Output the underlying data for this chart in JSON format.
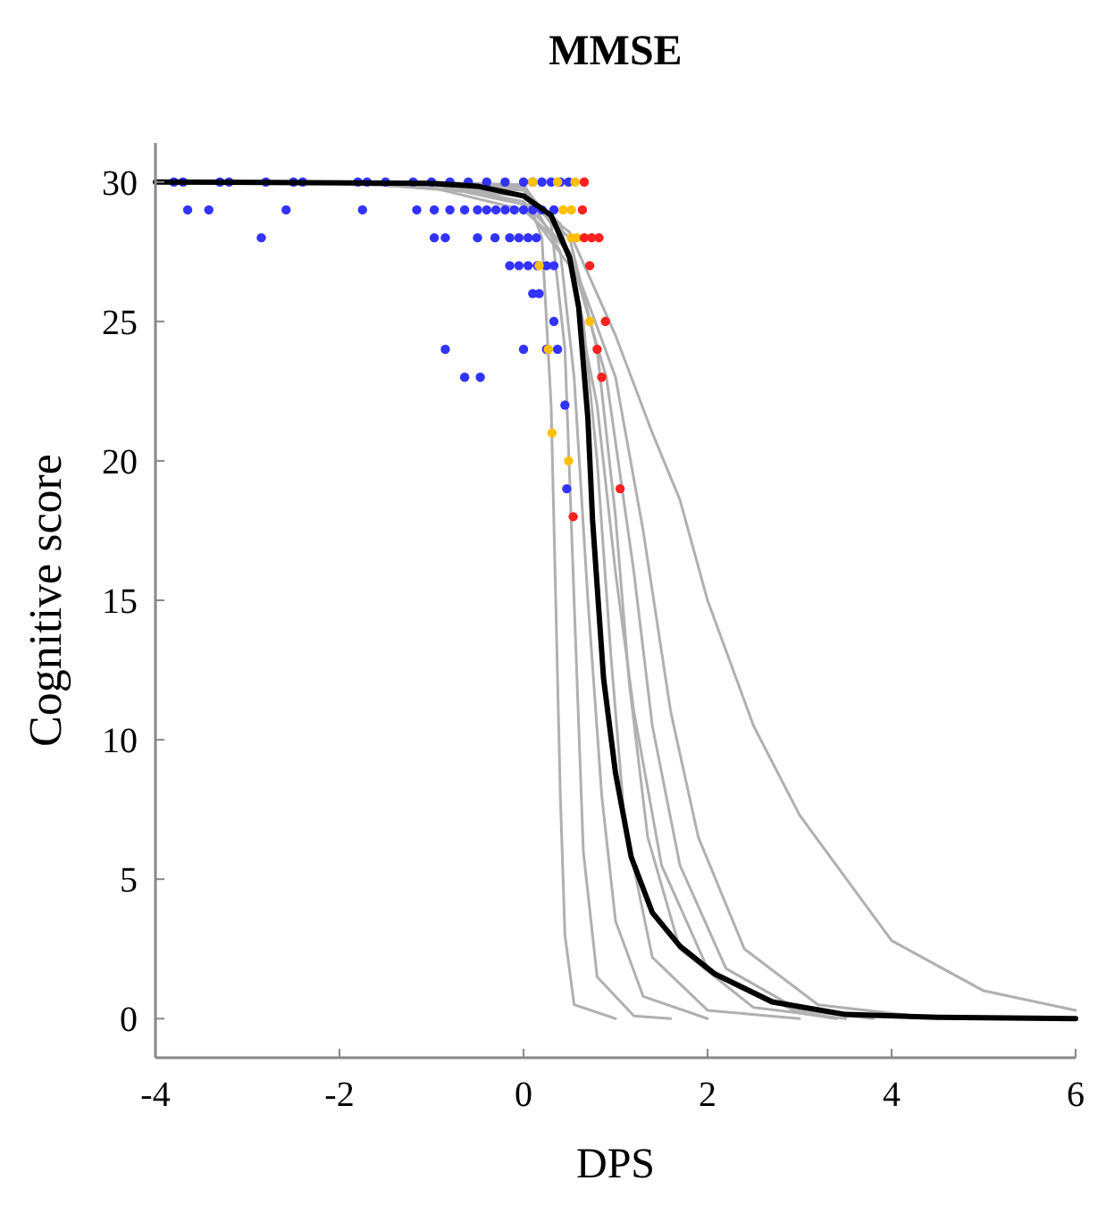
{
  "chart_data": {
    "type": "line",
    "title": "MMSE",
    "xlabel": "DPS",
    "ylabel": "Cognitive score",
    "xlim": [
      -4,
      6
    ],
    "ylim": [
      -1.4,
      31.4
    ],
    "xticks": [
      -4,
      -2,
      0,
      2,
      4,
      6
    ],
    "yticks": [
      0,
      5,
      10,
      15,
      20,
      25,
      30
    ],
    "grid": false,
    "line_style": "solid",
    "series": [
      {
        "color": "#b0b0b0",
        "x": [
          -1,
          0,
          0.2,
          0.3,
          0.35,
          0.4,
          0.45,
          0.55,
          1
        ],
        "values": [
          30,
          29.8,
          28,
          22,
          15,
          8,
          3,
          0.5,
          0
        ]
      },
      {
        "color": "#b0b0b0",
        "x": [
          -1.2,
          0,
          0.3,
          0.45,
          0.55,
          0.65,
          0.8,
          1.2,
          1.6
        ],
        "values": [
          30,
          29.9,
          28.5,
          24,
          15,
          6,
          1.5,
          0.1,
          0
        ]
      },
      {
        "color": "#b0b0b0",
        "x": [
          -1.4,
          0,
          0.4,
          0.55,
          0.7,
          0.85,
          1,
          1.3,
          2
        ],
        "values": [
          30,
          29.8,
          27.5,
          23,
          15,
          8,
          3.5,
          0.8,
          0
        ]
      },
      {
        "color": "#b0b0b0",
        "x": [
          -1.6,
          0,
          0.4,
          0.65,
          0.8,
          0.95,
          1.1,
          1.4,
          2,
          3
        ],
        "values": [
          30,
          29.7,
          28.5,
          25,
          20,
          13,
          7,
          2.2,
          0.3,
          0
        ]
      },
      {
        "color": "#b0b0b0",
        "x": [
          -1.8,
          -1,
          0,
          0.5,
          0.8,
          1,
          1.2,
          1.5,
          2,
          3,
          3.4
        ],
        "values": [
          30,
          29.9,
          29.2,
          27,
          22,
          16,
          11,
          5.5,
          1.8,
          0.2,
          0
        ]
      },
      {
        "color": "#b0b0b0",
        "x": [
          -2,
          0,
          0.5,
          0.8,
          1,
          1.15,
          1.35,
          1.7,
          2.5,
          3.5
        ],
        "values": [
          30,
          29.5,
          28,
          24,
          18,
          12,
          6.5,
          2.5,
          0.4,
          0
        ]
      },
      {
        "color": "#b0b0b0",
        "x": [
          -2.2,
          -1,
          0,
          0.5,
          0.9,
          1.2,
          1.4,
          1.7,
          2.2,
          3,
          3.8
        ],
        "values": [
          30,
          29.9,
          29.3,
          27.5,
          23,
          16,
          10.5,
          5.5,
          1.8,
          0.3,
          0
        ]
      },
      {
        "color": "#b0b0b0",
        "x": [
          -2.4,
          -1,
          0,
          0.5,
          1,
          1.3,
          1.6,
          1.9,
          2.4,
          3.2,
          4.5
        ],
        "values": [
          30,
          29.8,
          29,
          27.5,
          23,
          17.5,
          11,
          6.5,
          2.5,
          0.5,
          0
        ]
      },
      {
        "color": "#b0b0b0",
        "x": [
          -2.6,
          -1,
          0,
          0.5,
          1,
          1.4,
          1.7,
          2,
          2.5,
          3,
          3.4,
          4,
          5,
          6
        ],
        "values": [
          30,
          29.9,
          29.5,
          28.2,
          24.5,
          21,
          18.6,
          15,
          10.5,
          7.3,
          5.5,
          2.8,
          1,
          0.3
        ]
      },
      {
        "type": "scatter",
        "color": "#3333ff",
        "marker": "circle",
        "x": [
          -3.8,
          -3.7,
          -3.3,
          -3.2,
          -2.8,
          -2.5,
          -2.4,
          -1.8,
          -1.7,
          -1.5,
          -1.2,
          -1,
          -0.8,
          -0.6,
          -0.4,
          -0.2,
          0,
          0.1,
          0.2,
          0.3,
          0.4,
          0.49,
          -3.65,
          -3.42,
          -2.58,
          -1.75,
          -1.16,
          -0.97,
          -0.8,
          -0.64,
          -0.5,
          -0.4,
          -0.3,
          -0.2,
          -0.1,
          0,
          0.1,
          0.2,
          0.33,
          -2.85,
          -0.97,
          -0.85,
          -0.5,
          -0.31,
          -0.15,
          -0.05,
          0.05,
          0.14,
          -0.15,
          -0.05,
          0.05,
          0.15,
          0.25,
          0.33,
          0.1,
          0.17,
          0.33,
          -0.85,
          0,
          0.25,
          0.37,
          -0.64,
          -0.47,
          0.45,
          0.47
        ],
        "values": [
          30,
          30,
          30,
          30,
          30,
          30,
          30,
          30,
          30,
          30,
          30,
          30,
          30,
          30,
          30,
          30,
          30,
          30,
          30,
          30,
          30,
          30,
          29,
          29,
          29,
          29,
          29,
          29,
          29,
          29,
          29,
          29,
          29,
          29,
          29,
          29,
          29,
          29,
          29,
          28,
          28,
          28,
          28,
          28,
          28,
          28,
          28,
          28,
          27,
          27,
          27,
          27,
          27,
          27,
          26,
          26,
          25,
          24,
          24,
          24,
          24,
          23,
          23,
          22,
          19
        ]
      },
      {
        "type": "scatter",
        "color": "#ffc000",
        "marker": "circle",
        "x": [
          0.1,
          0.37,
          0.56,
          0.43,
          0.52,
          0.52,
          0.58,
          0.17,
          0.72,
          0.27,
          0.31,
          0.49
        ],
        "values": [
          30,
          30,
          30,
          29,
          29,
          28,
          28,
          27,
          25,
          24,
          21,
          20
        ]
      },
      {
        "type": "scatter",
        "color": "#ff2020",
        "marker": "circle",
        "x": [
          0.66,
          0.64,
          0.66,
          0.74,
          0.82,
          0.72,
          0.89,
          0.8,
          0.85,
          1.05,
          0.54
        ],
        "values": [
          30,
          29,
          28,
          28,
          28,
          27,
          25,
          24,
          23,
          19,
          18
        ]
      },
      {
        "color": "#000000",
        "x": [
          -4,
          -1,
          -0.5,
          0,
          0.3,
          0.5,
          0.6,
          0.7,
          0.75,
          0.87,
          1,
          1.17,
          1.4,
          1.7,
          2.08,
          2.7,
          3.5,
          4.5,
          6
        ],
        "values": [
          30,
          29.95,
          29.85,
          29.5,
          28.8,
          27.3,
          25.5,
          21.5,
          17.9,
          12.2,
          8.8,
          5.8,
          3.8,
          2.6,
          1.6,
          0.6,
          0.15,
          0.05,
          0
        ]
      }
    ]
  }
}
